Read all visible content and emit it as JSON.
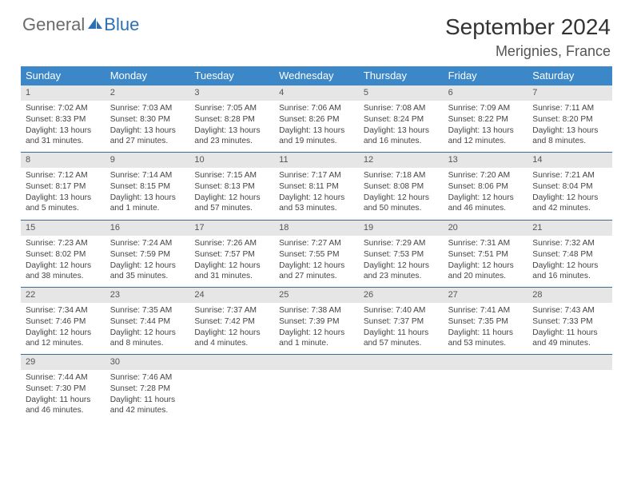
{
  "brand": {
    "part1": "General",
    "part2": "Blue"
  },
  "title": "September 2024",
  "location": "Merignies, France",
  "colors": {
    "header_bg": "#3b87c8",
    "header_text": "#ffffff",
    "daynum_bg": "#e6e6e6",
    "week_border": "#3b6b94",
    "brand_gray": "#6b6b6b",
    "brand_blue": "#2d6fb3"
  },
  "day_names": [
    "Sunday",
    "Monday",
    "Tuesday",
    "Wednesday",
    "Thursday",
    "Friday",
    "Saturday"
  ],
  "days": [
    {
      "n": 1,
      "sunrise": "7:02 AM",
      "sunset": "8:33 PM",
      "daylight": "13 hours and 31 minutes."
    },
    {
      "n": 2,
      "sunrise": "7:03 AM",
      "sunset": "8:30 PM",
      "daylight": "13 hours and 27 minutes."
    },
    {
      "n": 3,
      "sunrise": "7:05 AM",
      "sunset": "8:28 PM",
      "daylight": "13 hours and 23 minutes."
    },
    {
      "n": 4,
      "sunrise": "7:06 AM",
      "sunset": "8:26 PM",
      "daylight": "13 hours and 19 minutes."
    },
    {
      "n": 5,
      "sunrise": "7:08 AM",
      "sunset": "8:24 PM",
      "daylight": "13 hours and 16 minutes."
    },
    {
      "n": 6,
      "sunrise": "7:09 AM",
      "sunset": "8:22 PM",
      "daylight": "13 hours and 12 minutes."
    },
    {
      "n": 7,
      "sunrise": "7:11 AM",
      "sunset": "8:20 PM",
      "daylight": "13 hours and 8 minutes."
    },
    {
      "n": 8,
      "sunrise": "7:12 AM",
      "sunset": "8:17 PM",
      "daylight": "13 hours and 5 minutes."
    },
    {
      "n": 9,
      "sunrise": "7:14 AM",
      "sunset": "8:15 PM",
      "daylight": "13 hours and 1 minute."
    },
    {
      "n": 10,
      "sunrise": "7:15 AM",
      "sunset": "8:13 PM",
      "daylight": "12 hours and 57 minutes."
    },
    {
      "n": 11,
      "sunrise": "7:17 AM",
      "sunset": "8:11 PM",
      "daylight": "12 hours and 53 minutes."
    },
    {
      "n": 12,
      "sunrise": "7:18 AM",
      "sunset": "8:08 PM",
      "daylight": "12 hours and 50 minutes."
    },
    {
      "n": 13,
      "sunrise": "7:20 AM",
      "sunset": "8:06 PM",
      "daylight": "12 hours and 46 minutes."
    },
    {
      "n": 14,
      "sunrise": "7:21 AM",
      "sunset": "8:04 PM",
      "daylight": "12 hours and 42 minutes."
    },
    {
      "n": 15,
      "sunrise": "7:23 AM",
      "sunset": "8:02 PM",
      "daylight": "12 hours and 38 minutes."
    },
    {
      "n": 16,
      "sunrise": "7:24 AM",
      "sunset": "7:59 PM",
      "daylight": "12 hours and 35 minutes."
    },
    {
      "n": 17,
      "sunrise": "7:26 AM",
      "sunset": "7:57 PM",
      "daylight": "12 hours and 31 minutes."
    },
    {
      "n": 18,
      "sunrise": "7:27 AM",
      "sunset": "7:55 PM",
      "daylight": "12 hours and 27 minutes."
    },
    {
      "n": 19,
      "sunrise": "7:29 AM",
      "sunset": "7:53 PM",
      "daylight": "12 hours and 23 minutes."
    },
    {
      "n": 20,
      "sunrise": "7:31 AM",
      "sunset": "7:51 PM",
      "daylight": "12 hours and 20 minutes."
    },
    {
      "n": 21,
      "sunrise": "7:32 AM",
      "sunset": "7:48 PM",
      "daylight": "12 hours and 16 minutes."
    },
    {
      "n": 22,
      "sunrise": "7:34 AM",
      "sunset": "7:46 PM",
      "daylight": "12 hours and 12 minutes."
    },
    {
      "n": 23,
      "sunrise": "7:35 AM",
      "sunset": "7:44 PM",
      "daylight": "12 hours and 8 minutes."
    },
    {
      "n": 24,
      "sunrise": "7:37 AM",
      "sunset": "7:42 PM",
      "daylight": "12 hours and 4 minutes."
    },
    {
      "n": 25,
      "sunrise": "7:38 AM",
      "sunset": "7:39 PM",
      "daylight": "12 hours and 1 minute."
    },
    {
      "n": 26,
      "sunrise": "7:40 AM",
      "sunset": "7:37 PM",
      "daylight": "11 hours and 57 minutes."
    },
    {
      "n": 27,
      "sunrise": "7:41 AM",
      "sunset": "7:35 PM",
      "daylight": "11 hours and 53 minutes."
    },
    {
      "n": 28,
      "sunrise": "7:43 AM",
      "sunset": "7:33 PM",
      "daylight": "11 hours and 49 minutes."
    },
    {
      "n": 29,
      "sunrise": "7:44 AM",
      "sunset": "7:30 PM",
      "daylight": "11 hours and 46 minutes."
    },
    {
      "n": 30,
      "sunrise": "7:46 AM",
      "sunset": "7:28 PM",
      "daylight": "11 hours and 42 minutes."
    }
  ],
  "labels": {
    "sunrise": "Sunrise:",
    "sunset": "Sunset:",
    "daylight": "Daylight:"
  },
  "layout": {
    "start_weekday": 0,
    "columns": 7,
    "cell_font_size": 10.2
  }
}
